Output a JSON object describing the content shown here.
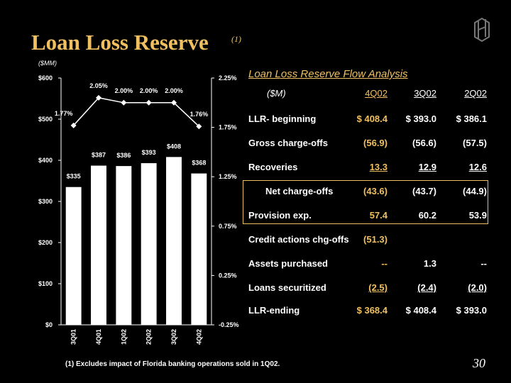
{
  "slide": {
    "title": "Loan Loss Reserve",
    "title_note": "(1)",
    "page_number": "30",
    "footnote": "(1)   Excludes impact of Florida banking operations sold in 1Q02.",
    "accent_color": "#f0c060"
  },
  "chart_data": {
    "type": "bar",
    "unit_label": "($MM)",
    "categories": [
      "3Q01",
      "4Q01",
      "1Q02",
      "2Q02",
      "3Q02",
      "4Q02"
    ],
    "series": [
      {
        "type": "bar",
        "axis": "left",
        "values": [
          335,
          387,
          386,
          393,
          408,
          368
        ],
        "labels": [
          "$335",
          "$387",
          "$386",
          "$393",
          "$408",
          "$368"
        ],
        "color": "#ffffff"
      },
      {
        "type": "line",
        "axis": "right",
        "values": [
          1.77,
          2.05,
          2.0,
          2.0,
          2.0,
          1.76
        ],
        "labels": [
          "1.77%",
          "2.05%",
          "2.00%",
          "2.00%",
          "2.00%",
          "1.76%"
        ],
        "color": "#ffffff"
      }
    ],
    "left_axis": {
      "range": [
        0,
        600
      ],
      "ticks": [
        "$0",
        "$100",
        "$200",
        "$300",
        "$400",
        "$500",
        "$600"
      ]
    },
    "right_axis": {
      "range": [
        -0.25,
        2.25
      ],
      "ticks": [
        "-0.25%",
        "0.25%",
        "0.75%",
        "1.25%",
        "1.75%",
        "2.25%"
      ]
    }
  },
  "flow": {
    "title": "Loan Loss Reserve Flow Analysis",
    "header": {
      "label": "($M)",
      "c1": "4Q02",
      "c2": "3Q02",
      "c3": "2Q02"
    },
    "rows": [
      {
        "label": "LLR- beginning",
        "c1": "$ 408.4",
        "c2": "$ 393.0",
        "c3": "$ 386.1"
      },
      {
        "label": "Gross charge-offs",
        "c1": "(56.9)",
        "c2": "(56.6)",
        "c3": "(57.5)"
      },
      {
        "label": "Recoveries",
        "c1": "13.3",
        "c2": "12.9",
        "c3": "12.6"
      },
      {
        "label": "Net charge-offs",
        "c1": "(43.6)",
        "c2": "(43.7)",
        "c3": "(44.9)"
      },
      {
        "label": "Provision exp.",
        "c1": "57.4",
        "c2": "60.2",
        "c3": "53.9"
      },
      {
        "label": "Credit actions chg-offs",
        "c1": "(51.3)",
        "c2": "",
        "c3": ""
      },
      {
        "label": "Assets purchased",
        "c1": "--",
        "c2": "1.3",
        "c3": "--"
      },
      {
        "label": "Loans securitized",
        "c1": "(2.5)",
        "c2": "(2.4)",
        "c3": "(2.0)"
      },
      {
        "label": "LLR-ending",
        "c1": "$ 368.4",
        "c2": "$ 408.4",
        "c3": "$ 393.0"
      }
    ]
  }
}
